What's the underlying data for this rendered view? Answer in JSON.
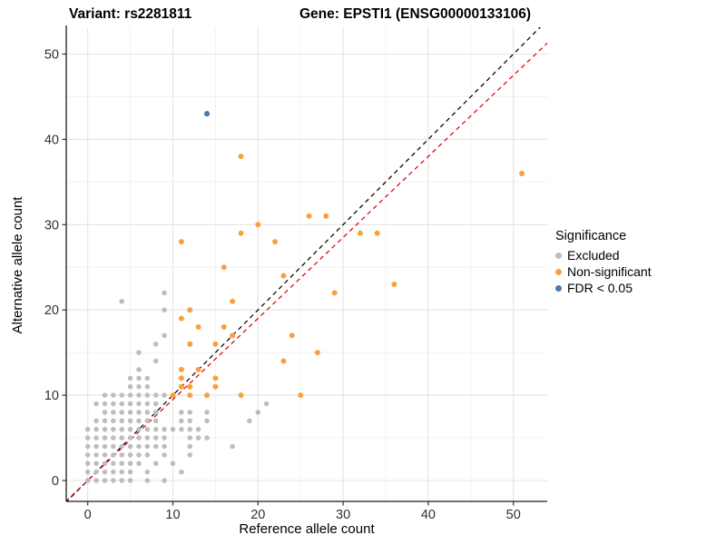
{
  "titles": {
    "left": "Variant: rs2281811",
    "right": "Gene: EPSTI1 (ENSG00000133106)"
  },
  "axes": {
    "x_label": "Reference allele count",
    "y_label": "Alternative allele count",
    "x_ticks": [
      0,
      10,
      20,
      30,
      40,
      50
    ],
    "y_ticks": [
      0,
      10,
      20,
      30,
      40,
      50
    ]
  },
  "legend": {
    "title": "Significance",
    "items": [
      {
        "label": "Excluded",
        "color": "#bdbdbd"
      },
      {
        "label": "Non-significant",
        "color": "#f8a13c"
      },
      {
        "label": "FDR < 0.05",
        "color": "#4e79a7"
      }
    ]
  },
  "chart_data": {
    "type": "scatter",
    "title_left": "Variant: rs2281811",
    "title_right": "Gene: EPSTI1 (ENSG00000133106)",
    "xlabel": "Reference allele count",
    "ylabel": "Alternative allele count",
    "xlim": [
      -2.5,
      54
    ],
    "ylim": [
      -2.5,
      53
    ],
    "grid": "on",
    "legend_position": "right",
    "series": [
      {
        "name": "Excluded",
        "color": "#bdbdbd",
        "points": [
          [
            0,
            0
          ],
          [
            1,
            0
          ],
          [
            2,
            0
          ],
          [
            3,
            0
          ],
          [
            4,
            0
          ],
          [
            5,
            0
          ],
          [
            7,
            0
          ],
          [
            9,
            0
          ],
          [
            0,
            1
          ],
          [
            1,
            1
          ],
          [
            2,
            1
          ],
          [
            3,
            1
          ],
          [
            4,
            1
          ],
          [
            5,
            1
          ],
          [
            7,
            1
          ],
          [
            11,
            1
          ],
          [
            0,
            2
          ],
          [
            1,
            2
          ],
          [
            2,
            2
          ],
          [
            3,
            2
          ],
          [
            4,
            2
          ],
          [
            5,
            2
          ],
          [
            6,
            2
          ],
          [
            8,
            2
          ],
          [
            10,
            2
          ],
          [
            0,
            3
          ],
          [
            1,
            3
          ],
          [
            2,
            3
          ],
          [
            3,
            3
          ],
          [
            4,
            3
          ],
          [
            5,
            3
          ],
          [
            6,
            3
          ],
          [
            7,
            3
          ],
          [
            9,
            3
          ],
          [
            12,
            3
          ],
          [
            0,
            4
          ],
          [
            1,
            4
          ],
          [
            2,
            4
          ],
          [
            3,
            4
          ],
          [
            4,
            4
          ],
          [
            5,
            4
          ],
          [
            6,
            4
          ],
          [
            7,
            4
          ],
          [
            8,
            4
          ],
          [
            9,
            4
          ],
          [
            12,
            4
          ],
          [
            17,
            4
          ],
          [
            0,
            5
          ],
          [
            1,
            5
          ],
          [
            2,
            5
          ],
          [
            3,
            5
          ],
          [
            4,
            5
          ],
          [
            5,
            5
          ],
          [
            6,
            5
          ],
          [
            7,
            5
          ],
          [
            8,
            5
          ],
          [
            9,
            5
          ],
          [
            12,
            5
          ],
          [
            13,
            5
          ],
          [
            14,
            5
          ],
          [
            0,
            6
          ],
          [
            1,
            6
          ],
          [
            2,
            6
          ],
          [
            3,
            6
          ],
          [
            4,
            6
          ],
          [
            5,
            6
          ],
          [
            6,
            6
          ],
          [
            7,
            6
          ],
          [
            8,
            6
          ],
          [
            9,
            6
          ],
          [
            10,
            6
          ],
          [
            11,
            6
          ],
          [
            12,
            6
          ],
          [
            13,
            6
          ],
          [
            1,
            7
          ],
          [
            2,
            7
          ],
          [
            3,
            7
          ],
          [
            4,
            7
          ],
          [
            5,
            7
          ],
          [
            6,
            7
          ],
          [
            7,
            7
          ],
          [
            8,
            7
          ],
          [
            11,
            7
          ],
          [
            12,
            7
          ],
          [
            14,
            7
          ],
          [
            19,
            7
          ],
          [
            2,
            8
          ],
          [
            3,
            8
          ],
          [
            4,
            8
          ],
          [
            5,
            8
          ],
          [
            6,
            8
          ],
          [
            7,
            8
          ],
          [
            8,
            8
          ],
          [
            11,
            8
          ],
          [
            12,
            8
          ],
          [
            14,
            8
          ],
          [
            20,
            8
          ],
          [
            1,
            9
          ],
          [
            2,
            9
          ],
          [
            3,
            9
          ],
          [
            4,
            9
          ],
          [
            5,
            9
          ],
          [
            6,
            9
          ],
          [
            7,
            9
          ],
          [
            8,
            9
          ],
          [
            21,
            9
          ],
          [
            2,
            10
          ],
          [
            3,
            10
          ],
          [
            4,
            10
          ],
          [
            5,
            10
          ],
          [
            6,
            10
          ],
          [
            7,
            10
          ],
          [
            8,
            10
          ],
          [
            9,
            10
          ],
          [
            5,
            11
          ],
          [
            6,
            11
          ],
          [
            7,
            11
          ],
          [
            5,
            12
          ],
          [
            6,
            12
          ],
          [
            7,
            12
          ],
          [
            6,
            13
          ],
          [
            8,
            14
          ],
          [
            6,
            15
          ],
          [
            8,
            16
          ],
          [
            9,
            17
          ],
          [
            9,
            20
          ],
          [
            4,
            21
          ],
          [
            9,
            22
          ]
        ]
      },
      {
        "name": "Non-significant",
        "color": "#f8a13c",
        "points": [
          [
            10,
            10
          ],
          [
            12,
            10
          ],
          [
            14,
            10
          ],
          [
            18,
            10
          ],
          [
            25,
            10
          ],
          [
            11,
            11
          ],
          [
            12,
            11
          ],
          [
            15,
            11
          ],
          [
            11,
            12
          ],
          [
            15,
            12
          ],
          [
            11,
            13
          ],
          [
            13,
            13
          ],
          [
            23,
            14
          ],
          [
            27,
            15
          ],
          [
            12,
            16
          ],
          [
            15,
            16
          ],
          [
            17,
            17
          ],
          [
            24,
            17
          ],
          [
            13,
            18
          ],
          [
            16,
            18
          ],
          [
            11,
            19
          ],
          [
            12,
            20
          ],
          [
            17,
            21
          ],
          [
            29,
            22
          ],
          [
            36,
            23
          ],
          [
            23,
            24
          ],
          [
            16,
            25
          ],
          [
            11,
            28
          ],
          [
            22,
            28
          ],
          [
            18,
            29
          ],
          [
            32,
            29
          ],
          [
            34,
            29
          ],
          [
            20,
            30
          ],
          [
            26,
            31
          ],
          [
            28,
            31
          ],
          [
            51,
            36
          ],
          [
            18,
            38
          ]
        ]
      },
      {
        "name": "FDR < 0.05",
        "color": "#4e79a7",
        "points": [
          [
            14,
            43
          ]
        ]
      }
    ],
    "lines": [
      {
        "name": "identity-line",
        "slope": 1,
        "intercept": 0,
        "color": "#000000",
        "dash": "5 4"
      },
      {
        "name": "expected-ratio-line",
        "slope": 0.95,
        "intercept": 0,
        "color": "#e60000",
        "dash": "5 4"
      }
    ]
  }
}
